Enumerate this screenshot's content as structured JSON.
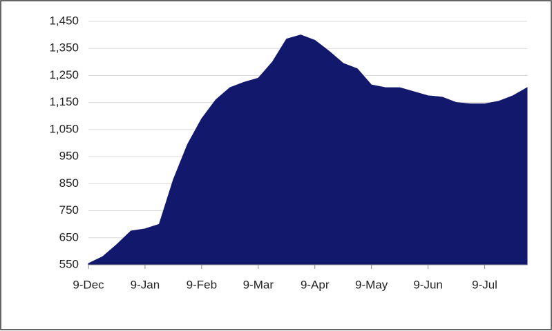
{
  "chart_data": {
    "type": "area",
    "categories": [
      "9-Dec",
      null,
      null,
      null,
      "9-Jan",
      null,
      null,
      null,
      "9-Feb",
      null,
      null,
      null,
      "9-Mar",
      null,
      null,
      null,
      "9-Apr",
      null,
      null,
      null,
      "9-May",
      null,
      null,
      null,
      "9-Jun",
      null,
      null,
      null,
      "9-Jul",
      null,
      null,
      null
    ],
    "values": [
      555,
      580,
      625,
      675,
      683,
      700,
      865,
      995,
      1090,
      1160,
      1205,
      1225,
      1240,
      1300,
      1385,
      1400,
      1380,
      1340,
      1295,
      1275,
      1215,
      1205,
      1205,
      1190,
      1175,
      1170,
      1150,
      1145,
      1145,
      1155,
      1175,
      1205
    ],
    "color": "#12186c",
    "ylim": [
      550,
      1450
    ],
    "yticks": [
      550,
      650,
      750,
      850,
      950,
      {
        "value": 1050,
        "label": "1,050"
      },
      {
        "value": 1150,
        "label": "1,150"
      },
      {
        "value": 1250,
        "label": "1,250"
      },
      {
        "value": 1350,
        "label": "1,350"
      },
      {
        "value": 1450,
        "label": "1,450"
      }
    ],
    "grid": true
  }
}
